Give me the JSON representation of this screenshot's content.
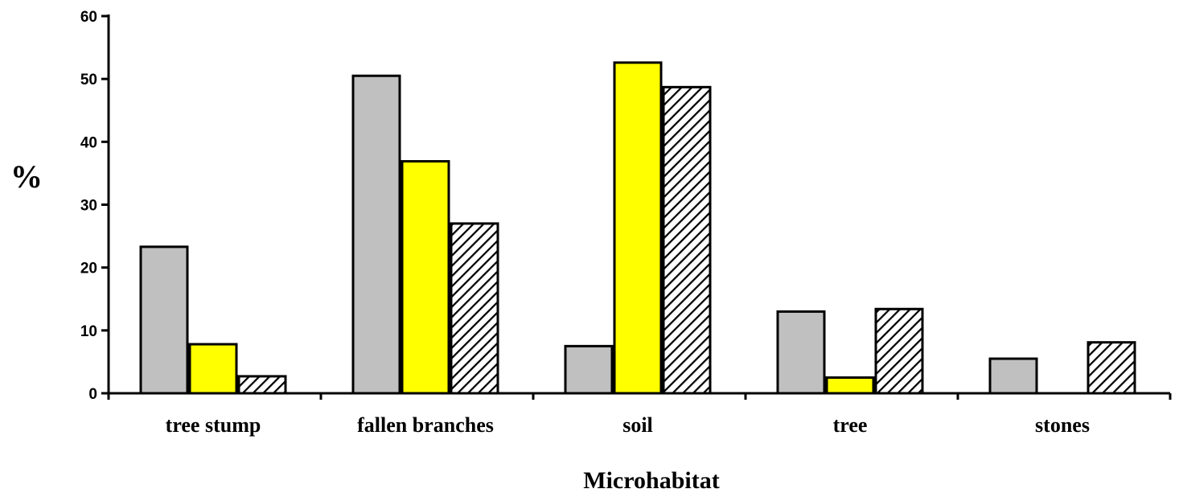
{
  "chart_data": {
    "type": "bar",
    "categories": [
      "tree stump",
      "fallen branches",
      "soil",
      "tree",
      "stones"
    ],
    "series": [
      {
        "values": [
          23.3,
          50.5,
          7.5,
          13.0,
          5.5
        ],
        "color": "#c0c0c0",
        "pattern": "solid"
      },
      {
        "values": [
          7.8,
          36.9,
          52.6,
          2.5,
          0
        ],
        "color": "#ffff00",
        "pattern": "solid"
      },
      {
        "values": [
          2.7,
          27.0,
          48.7,
          13.4,
          8.1
        ],
        "color": "#ffffff",
        "pattern": "diagonal-hatch"
      }
    ],
    "xlabel": "Microhabitat",
    "ylabel": "%",
    "ylim": [
      0,
      60
    ],
    "yticks": [
      0,
      10,
      20,
      30,
      40,
      50,
      60
    ],
    "grid": false,
    "legend": "none"
  }
}
